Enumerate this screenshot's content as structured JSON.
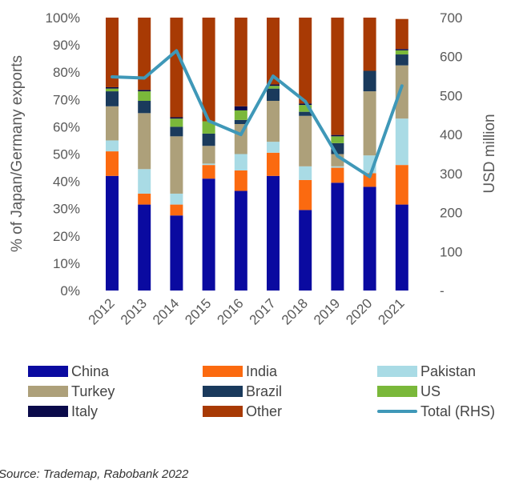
{
  "chart_data": {
    "type": "bar",
    "subtype": "stacked-percent-with-line",
    "categories": [
      "2012",
      "2013",
      "2014",
      "2015",
      "2016",
      "2017",
      "2018",
      "2019",
      "2020",
      "2021"
    ],
    "series": [
      {
        "name": "China",
        "color": "#0a0aa0",
        "values": [
          42,
          31.5,
          27.5,
          41,
          36.5,
          42,
          29.5,
          39.5,
          38,
          31.5
        ]
      },
      {
        "name": "India",
        "color": "#fb6a10",
        "values": [
          9,
          4,
          4,
          5,
          7.5,
          8.5,
          11,
          5.5,
          5,
          14.5
        ]
      },
      {
        "name": "Pakistan",
        "color": "#a9dbe5",
        "values": [
          4,
          9,
          4,
          0.5,
          6,
          4,
          5,
          0.5,
          6.5,
          17
        ]
      },
      {
        "name": "Turkey",
        "color": "#ada07a",
        "values": [
          12.5,
          20.5,
          21,
          6.5,
          11,
          15,
          18.5,
          4.5,
          23.5,
          19.5
        ]
      },
      {
        "name": "Brazil",
        "color": "#1a3a5c",
        "values": [
          5.5,
          4.5,
          3.5,
          4.5,
          1.5,
          4.5,
          1.5,
          4,
          7.5,
          4
        ]
      },
      {
        "name": "US",
        "color": "#7ab83a",
        "values": [
          1,
          3.5,
          3,
          4.5,
          3.5,
          1,
          2.5,
          2.5,
          0,
          1.5
        ]
      },
      {
        "name": "Italy",
        "color": "#0a0a4a",
        "values": [
          0.5,
          0.5,
          0.5,
          0,
          1.5,
          0.5,
          0.5,
          0.5,
          0,
          0.5
        ]
      },
      {
        "name": "Other",
        "color": "#a83a04",
        "values": [
          25.5,
          26.5,
          36.5,
          38,
          32.5,
          24.5,
          31.5,
          43,
          19.5,
          11
        ]
      }
    ],
    "line": {
      "name": "Total (RHS)",
      "color": "#3f98b8",
      "axis": "right",
      "values": [
        548,
        545,
        615,
        435,
        400,
        550,
        485,
        345,
        292,
        525
      ]
    },
    "ylabel": "% of Japan/Germany exports",
    "ylabel_right": "USD million",
    "ylim": [
      0,
      100
    ],
    "ylim_right": [
      0,
      700
    ],
    "yticks": [
      "0%",
      "10%",
      "20%",
      "30%",
      "40%",
      "50%",
      "60%",
      "70%",
      "80%",
      "90%",
      "100%"
    ],
    "yticks_right": [
      "-",
      "100",
      "200",
      "300",
      "400",
      "500",
      "600",
      "700"
    ],
    "grid": false,
    "legend_position": "bottom"
  },
  "legend": [
    {
      "label": "China",
      "color": "#0a0aa0",
      "kind": "box"
    },
    {
      "label": "India",
      "color": "#fb6a10",
      "kind": "box"
    },
    {
      "label": "Pakistan",
      "color": "#a9dbe5",
      "kind": "box"
    },
    {
      "label": "Turkey",
      "color": "#ada07a",
      "kind": "box"
    },
    {
      "label": "Brazil",
      "color": "#1a3a5c",
      "kind": "box"
    },
    {
      "label": "US",
      "color": "#7ab83a",
      "kind": "box"
    },
    {
      "label": "Italy",
      "color": "#0a0a4a",
      "kind": "box"
    },
    {
      "label": "Other",
      "color": "#a83a04",
      "kind": "box"
    },
    {
      "label": "Total (RHS)",
      "color": "#3f98b8",
      "kind": "line"
    }
  ],
  "source": "Source: Trademap, Rabobank 2022"
}
